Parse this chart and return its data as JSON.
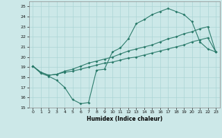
{
  "xlabel": "Humidex (Indice chaleur)",
  "xlim": [
    -0.5,
    23.5
  ],
  "ylim": [
    15,
    25.5
  ],
  "yticks": [
    15,
    16,
    17,
    18,
    19,
    20,
    21,
    22,
    23,
    24,
    25
  ],
  "xticks": [
    0,
    1,
    2,
    3,
    4,
    5,
    6,
    7,
    8,
    9,
    10,
    11,
    12,
    13,
    14,
    15,
    16,
    17,
    18,
    19,
    20,
    21,
    22,
    23
  ],
  "bg_color": "#cce8e8",
  "grid_color": "#aad4d4",
  "line_color": "#2a7a6a",
  "line1_x": [
    0,
    1,
    2,
    3,
    4,
    5,
    6,
    7,
    8,
    9,
    10,
    11,
    12,
    13,
    14,
    15,
    16,
    17,
    18,
    19,
    20,
    21,
    22,
    23
  ],
  "line1_y": [
    19.1,
    18.4,
    18.1,
    17.7,
    17.0,
    15.8,
    15.4,
    15.5,
    18.7,
    18.8,
    20.5,
    20.9,
    21.8,
    23.3,
    23.7,
    24.2,
    24.5,
    24.8,
    24.5,
    24.2,
    23.5,
    21.5,
    20.8,
    20.5
  ],
  "line2_x": [
    0,
    1,
    2,
    3,
    4,
    5,
    6,
    7,
    8,
    9,
    10,
    11,
    12,
    13,
    14,
    15,
    16,
    17,
    18,
    19,
    20,
    21,
    22,
    23
  ],
  "line2_y": [
    19.1,
    18.5,
    18.2,
    18.3,
    18.5,
    18.6,
    18.8,
    19.0,
    19.2,
    19.4,
    19.5,
    19.7,
    19.9,
    20.0,
    20.2,
    20.4,
    20.6,
    20.8,
    21.0,
    21.2,
    21.5,
    21.7,
    21.9,
    20.5
  ],
  "line3_x": [
    0,
    1,
    2,
    3,
    4,
    5,
    6,
    7,
    8,
    9,
    10,
    11,
    12,
    13,
    14,
    15,
    16,
    17,
    18,
    19,
    20,
    21,
    22,
    23
  ],
  "line3_y": [
    19.1,
    18.5,
    18.2,
    18.3,
    18.6,
    18.8,
    19.1,
    19.4,
    19.6,
    19.8,
    20.0,
    20.3,
    20.6,
    20.8,
    21.0,
    21.2,
    21.5,
    21.8,
    22.0,
    22.3,
    22.5,
    22.8,
    23.0,
    20.5
  ]
}
